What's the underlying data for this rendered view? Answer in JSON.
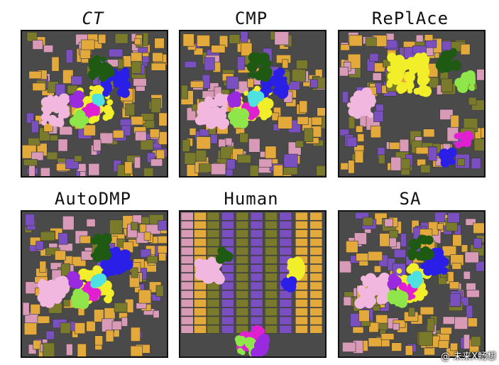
{
  "panels": [
    {
      "title": "CT",
      "italic": true
    },
    {
      "title": "CMP",
      "italic": false
    },
    {
      "title": "RePlAce",
      "italic": false
    },
    {
      "title": "AutoDMP",
      "italic": false
    },
    {
      "title": "Human",
      "italic": false
    },
    {
      "title": "SA",
      "italic": false
    }
  ],
  "watermark": "@ 未来X畅想",
  "colors": {
    "background": "#4a4a4a",
    "orange": "#e3a93b",
    "olive": "#7a7a2c",
    "purple": "#7a4fbf",
    "pink": "#d99ab8",
    "light_pink": "#f1b7df",
    "yellow": "#f2ee2a",
    "blue": "#2a1fe6",
    "dark_green": "#1f5a12",
    "magenta": "#e020d0",
    "green": "#8fe64a",
    "cyan": "#4fe0e0",
    "violet": "#9a2ae0"
  }
}
